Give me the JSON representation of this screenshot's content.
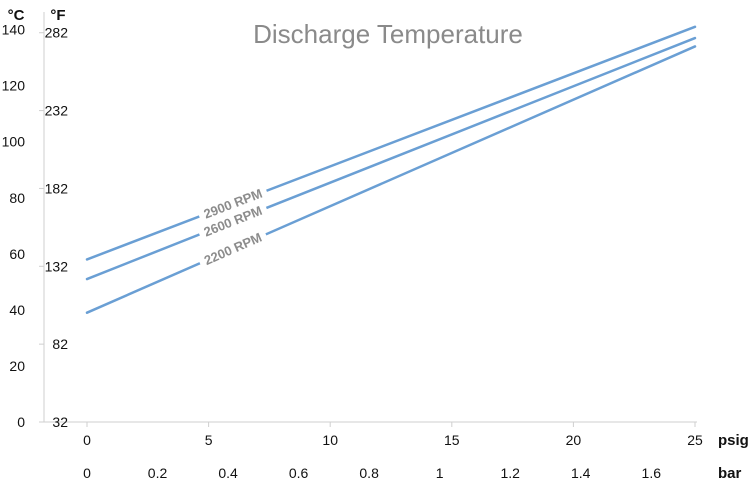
{
  "chart_data": {
    "type": "line",
    "title": "Discharge Temperature",
    "x_axes": {
      "psig": {
        "unit_label": "psig",
        "ticks": [
          0,
          5,
          10,
          15,
          20,
          25
        ],
        "range": [
          0,
          25
        ]
      },
      "bar": {
        "unit_label": "bar",
        "ticks": [
          "0",
          "0.2",
          "0.4",
          "0.6",
          "0.8",
          "1",
          "1.2",
          "1.4",
          "1.6"
        ],
        "range": [
          0,
          1.724
        ]
      }
    },
    "y_axes": {
      "celsius": {
        "unit_label": "°C",
        "ticks": [
          0,
          20,
          40,
          60,
          80,
          100,
          120,
          140
        ],
        "range": [
          0,
          147
        ]
      },
      "fahrenheit": {
        "unit_label": "°F",
        "ticks": [
          32,
          82,
          132,
          182,
          232,
          282
        ]
      }
    },
    "series": [
      {
        "name": "2900 RPM",
        "x_psig": [
          0,
          25
        ],
        "y_celsius": [
          58,
          141
        ]
      },
      {
        "name": "2600 RPM",
        "x_psig": [
          0,
          25
        ],
        "y_celsius": [
          51,
          137
        ]
      },
      {
        "name": "2200 RPM",
        "x_psig": [
          0,
          25
        ],
        "y_celsius": [
          39,
          134
        ]
      }
    ],
    "series_color": "#6a9fd4",
    "grid": false,
    "legend": "inline labels on lines"
  }
}
